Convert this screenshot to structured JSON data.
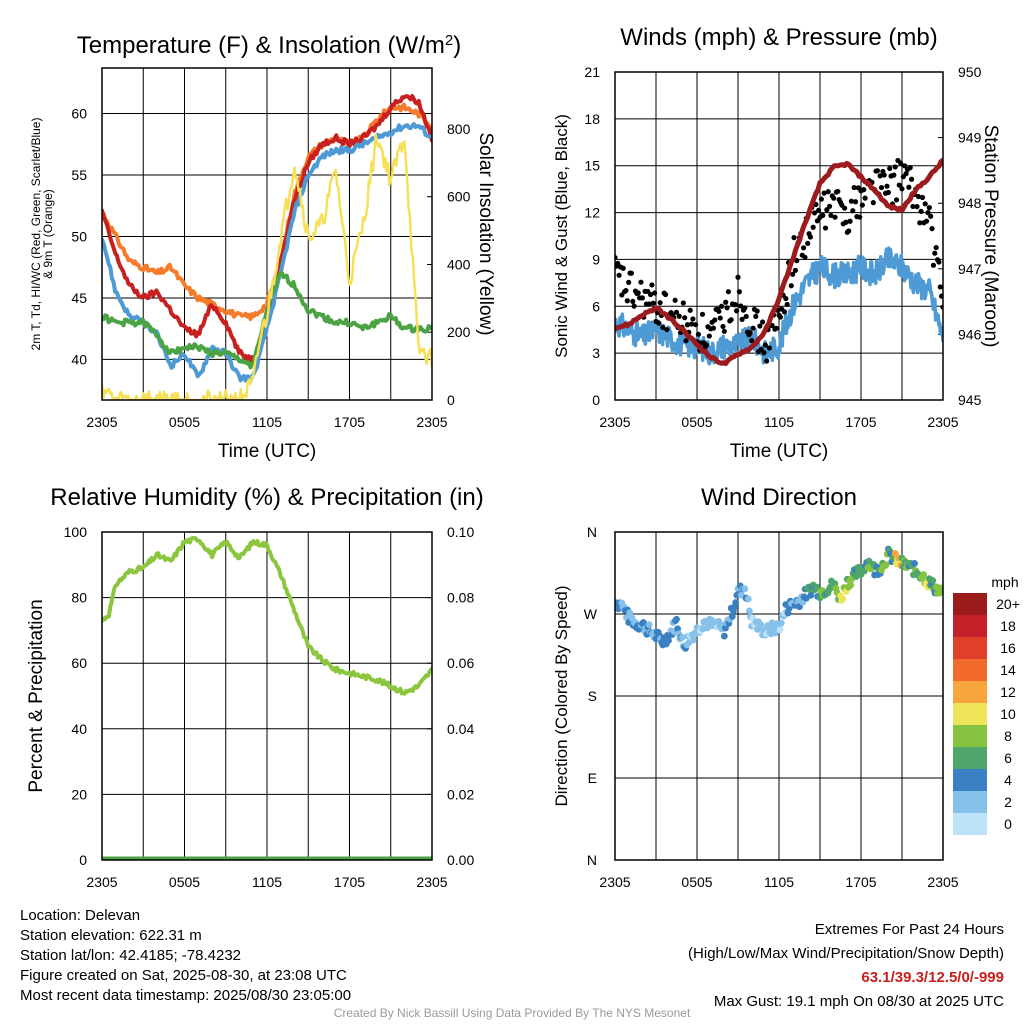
{
  "chart_data": [
    {
      "type": "line",
      "title": "Temperature (F) & Insolation (W/m2)",
      "xlabel": "Time (UTC)",
      "ylabel_left": "2m T, Td, HI/WC (Red, Green, Scarlet/Blue) & 9m T (Orange)",
      "ylabel_right": "Solar Insolation (Yellow)",
      "x_ticks": [
        "2305",
        "0505",
        "1105",
        "1705",
        "2305"
      ],
      "y_left_ticks": [
        40,
        45,
        50,
        55,
        60
      ],
      "y_left_range": [
        36.7,
        63.7
      ],
      "y_right_ticks": [
        0,
        200,
        400,
        600,
        800
      ],
      "y_right_range": [
        0,
        980
      ],
      "grid": true,
      "series": [
        {
          "name": "9m T",
          "color": "#f57a2a",
          "axis": "left",
          "hours": [
            0,
            1,
            2,
            3,
            4,
            5,
            6,
            7,
            8,
            9,
            10,
            11,
            12,
            13,
            14,
            15,
            16,
            17,
            18,
            19,
            20,
            21,
            22,
            23,
            24
          ],
          "values": [
            52,
            50,
            48,
            47.5,
            47,
            47.5,
            46,
            45,
            44.5,
            44,
            43.5,
            43.5,
            44.5,
            48,
            53.5,
            56.5,
            57.5,
            58,
            57.5,
            58,
            59.5,
            60.5,
            60.5,
            60,
            59
          ]
        },
        {
          "name": "2m T",
          "color": "#c8201e",
          "axis": "left",
          "hours": [
            0,
            1,
            2,
            3,
            4,
            5,
            6,
            7,
            8,
            9,
            10,
            11,
            12,
            13,
            14,
            15,
            16,
            17,
            18,
            19,
            20,
            21,
            22,
            23,
            24
          ],
          "values": [
            52,
            48.5,
            46,
            45,
            45.5,
            44,
            42.5,
            42,
            44.5,
            43,
            40.5,
            40,
            43.5,
            48,
            53,
            56,
            57.5,
            58,
            57.5,
            58,
            59,
            60.5,
            61.5,
            61,
            58
          ]
        },
        {
          "name": "HI/WC",
          "color": "#4d9ad5",
          "axis": "left",
          "hours": [
            0,
            1,
            2,
            3,
            4,
            5,
            6,
            7,
            8,
            9,
            10,
            11,
            12,
            13,
            14,
            15,
            16,
            17,
            18,
            19,
            20,
            21,
            22,
            23,
            24
          ],
          "values": [
            50,
            45.5,
            43.5,
            43,
            42,
            39.5,
            40.5,
            38.5,
            41,
            40.5,
            38.5,
            38.5,
            42.5,
            47,
            52,
            55,
            56.5,
            57,
            57,
            57.5,
            58,
            58.5,
            59,
            59,
            58
          ]
        },
        {
          "name": "2m Td",
          "color": "#4ba344",
          "axis": "left",
          "hours": [
            0,
            1,
            2,
            3,
            4,
            5,
            6,
            7,
            8,
            9,
            10,
            11,
            12,
            13,
            14,
            15,
            16,
            17,
            18,
            19,
            20,
            21,
            22,
            23,
            24
          ],
          "values": [
            43.5,
            43,
            43,
            43,
            42,
            40.5,
            41,
            41,
            40.5,
            40.5,
            40,
            39.5,
            44,
            47,
            46,
            44,
            43.5,
            43,
            43,
            42.5,
            43,
            43.5,
            42.5,
            42.5,
            42.5
          ]
        },
        {
          "name": "Solar Insolation",
          "color": "#f6e05a",
          "axis": "right",
          "hours": [
            0,
            0.5,
            1,
            2,
            3,
            4,
            5,
            6,
            7,
            8,
            9,
            10,
            11,
            11.5,
            12,
            13,
            14,
            15,
            16,
            17,
            18,
            19,
            20,
            21,
            22,
            23,
            24
          ],
          "values": [
            40,
            15,
            0,
            0,
            0,
            0,
            0,
            0,
            0,
            0,
            0,
            0,
            50,
            180,
            250,
            480,
            700,
            480,
            520,
            680,
            350,
            520,
            780,
            650,
            780,
            150,
            120
          ]
        }
      ]
    },
    {
      "type": "line",
      "title": "Winds (mph) & Pressure (mb)",
      "xlabel": "Time (UTC)",
      "ylabel_left": "Sonic Wind & Gust (Blue, Black)",
      "ylabel_right": "Station Pressure (Maroon)",
      "x_ticks": [
        "2305",
        "0505",
        "1105",
        "1705",
        "2305"
      ],
      "y_left_ticks": [
        0,
        3,
        6,
        9,
        12,
        15,
        18,
        21
      ],
      "y_left_range": [
        0,
        21
      ],
      "y_right_ticks": [
        945,
        946,
        947,
        948,
        949,
        950
      ],
      "y_right_range": [
        945,
        950
      ],
      "grid": true,
      "series": [
        {
          "name": "Sonic Wind",
          "color": "#4d9ad5",
          "axis": "left",
          "hours": [
            0,
            1,
            2,
            3,
            4,
            5,
            6,
            7,
            8,
            9,
            10,
            11,
            12,
            13,
            14,
            15,
            16,
            17,
            18,
            19,
            20,
            21,
            22,
            23,
            24
          ],
          "values": [
            5,
            4.5,
            4,
            4.5,
            4,
            3.5,
            3.5,
            3,
            3.5,
            3.5,
            4,
            3,
            3.5,
            6,
            7.5,
            8.5,
            8,
            8,
            8.5,
            8,
            9,
            8.5,
            7.5,
            7,
            4
          ]
        },
        {
          "name": "Gust",
          "color": "#000000",
          "axis": "left",
          "hours": [
            0,
            1,
            2,
            3,
            4,
            5,
            6,
            7,
            8,
            9,
            10,
            11,
            12,
            13,
            14,
            15,
            16,
            17,
            18,
            19,
            20,
            21,
            22,
            23,
            24
          ],
          "values": [
            8,
            7,
            6.5,
            6,
            5.5,
            5,
            4.5,
            4,
            5.5,
            7,
            5,
            3.5,
            5,
            9,
            10.5,
            12,
            12.5,
            12,
            13,
            14,
            13.5,
            14.5,
            13,
            11.5,
            6
          ]
        },
        {
          "name": "Station Pressure",
          "color": "#9c1b1f",
          "axis": "right",
          "hours": [
            0,
            1,
            2,
            3,
            4,
            5,
            6,
            7,
            8,
            9,
            10,
            11,
            12,
            13,
            14,
            15,
            16,
            17,
            18,
            19,
            20,
            21,
            22,
            23,
            24
          ],
          "values": [
            946.1,
            946.15,
            946.3,
            946.4,
            946.25,
            946.05,
            945.85,
            945.65,
            945.55,
            945.7,
            945.8,
            946.05,
            946.55,
            947.15,
            947.75,
            948.3,
            948.55,
            948.6,
            948.4,
            948.2,
            947.95,
            947.9,
            948.2,
            948.4,
            948.65
          ]
        }
      ]
    },
    {
      "type": "line",
      "title": "Relative Humidity (%) & Precipitation (in)",
      "xlabel": "",
      "ylabel_left": "Percent & Precipitation",
      "x_ticks": [
        "2305",
        "0505",
        "1105",
        "1705",
        "2305"
      ],
      "y_left_ticks": [
        0,
        20,
        40,
        60,
        80,
        100
      ],
      "y_left_range": [
        0,
        100
      ],
      "y_right_ticks": [
        "0.00",
        "0.02",
        "0.04",
        "0.06",
        "0.08",
        "0.10"
      ],
      "y_right_range": [
        0,
        0.1
      ],
      "grid": true,
      "series": [
        {
          "name": "Relative Humidity",
          "color": "#8cc63f",
          "axis": "left",
          "hours": [
            0,
            0.5,
            1,
            2,
            3,
            4,
            5,
            6,
            7,
            8,
            9,
            10,
            11,
            12,
            13,
            14,
            15,
            16,
            17,
            18,
            19,
            20,
            21,
            22,
            23,
            24
          ],
          "values": [
            73,
            75,
            84,
            88,
            89,
            93,
            91,
            97,
            98,
            93,
            97,
            92,
            97,
            96,
            87,
            76,
            65,
            61,
            58,
            57,
            56,
            55,
            53,
            51,
            53,
            58
          ]
        },
        {
          "name": "Precipitation",
          "color": "#4ba344",
          "axis": "right",
          "hours": [
            0,
            24
          ],
          "values": [
            0,
            0
          ]
        }
      ]
    },
    {
      "type": "scatter",
      "title": "Wind Direction",
      "xlabel": "",
      "ylabel_left": "Direction (Colored By Speed)",
      "x_ticks": [
        "2305",
        "0505",
        "1105",
        "1705",
        "2305"
      ],
      "y_left_ticks": [
        "N",
        "E",
        "S",
        "W",
        "N"
      ],
      "y_left_range": [
        0,
        360
      ],
      "grid": true,
      "hours": [
        0,
        0.5,
        1,
        1.5,
        2,
        2.5,
        3,
        3.5,
        4,
        4.5,
        5,
        5.5,
        6,
        6.5,
        7,
        7.5,
        8,
        8.5,
        9,
        9.5,
        10,
        10.5,
        11,
        11.5,
        12,
        12.5,
        13,
        13.5,
        14,
        14.5,
        15,
        15.5,
        16,
        16.5,
        17,
        17.5,
        18,
        18.5,
        19,
        19.5,
        20,
        20.5,
        21,
        21.5,
        22,
        22.5,
        23,
        23.5,
        24
      ],
      "directions": [
        283,
        280,
        266,
        260,
        258,
        252,
        246,
        240,
        248,
        262,
        235,
        245,
        252,
        262,
        258,
        256,
        252,
        270,
        293,
        300,
        262,
        256,
        250,
        254,
        255,
        275,
        282,
        285,
        292,
        300,
        294,
        298,
        302,
        286,
        305,
        312,
        318,
        328,
        318,
        322,
        335,
        330,
        325,
        322,
        318,
        312,
        304,
        298,
        292
      ],
      "speeds": [
        4,
        4,
        4,
        4,
        4,
        3,
        4,
        4,
        3,
        4,
        4,
        2,
        2,
        2,
        2,
        2,
        4,
        4,
        4,
        4,
        2,
        2,
        2,
        2,
        2,
        4,
        4,
        4,
        6,
        6,
        8,
        6,
        8,
        10,
        8,
        6,
        6,
        8,
        6,
        8,
        6,
        12,
        8,
        6,
        8,
        10,
        6,
        8,
        4
      ],
      "legend": {
        "title": "mph",
        "labels": [
          "20+",
          "18",
          "16",
          "14",
          "12",
          "10",
          "8",
          "6",
          "4",
          "2",
          "0"
        ],
        "colors": [
          "#9b1b1b",
          "#c4202a",
          "#e03f2a",
          "#f36b2c",
          "#f9a53e",
          "#ede45a",
          "#86c341",
          "#4ea66a",
          "#3b80c2",
          "#86c1ea",
          "#bde3f8"
        ]
      }
    }
  ],
  "footer": {
    "location": "Location: Delevan",
    "elevation": "Station elevation: 622.31 m",
    "latlon": "Station lat/lon: 42.4185; -78.4232",
    "created": "Figure created on Sat, 2025-08-30, at 23:08 UTC",
    "recent": "Most recent data timestamp: 2025/08/30 23:05:00",
    "extremes_title": "Extremes For Past 24 Hours",
    "extremes_subtitle": "(High/Low/Max Wind/Precipitation/Snow Depth)",
    "extremes_values": "63.1/39.3/12.5/0/-999",
    "max_gust": "Max Gust: 19.1 mph On 08/30 at 2025 UTC",
    "credit": "Created By Nick Bassill Using Data Provided By The NYS Mesonet"
  }
}
